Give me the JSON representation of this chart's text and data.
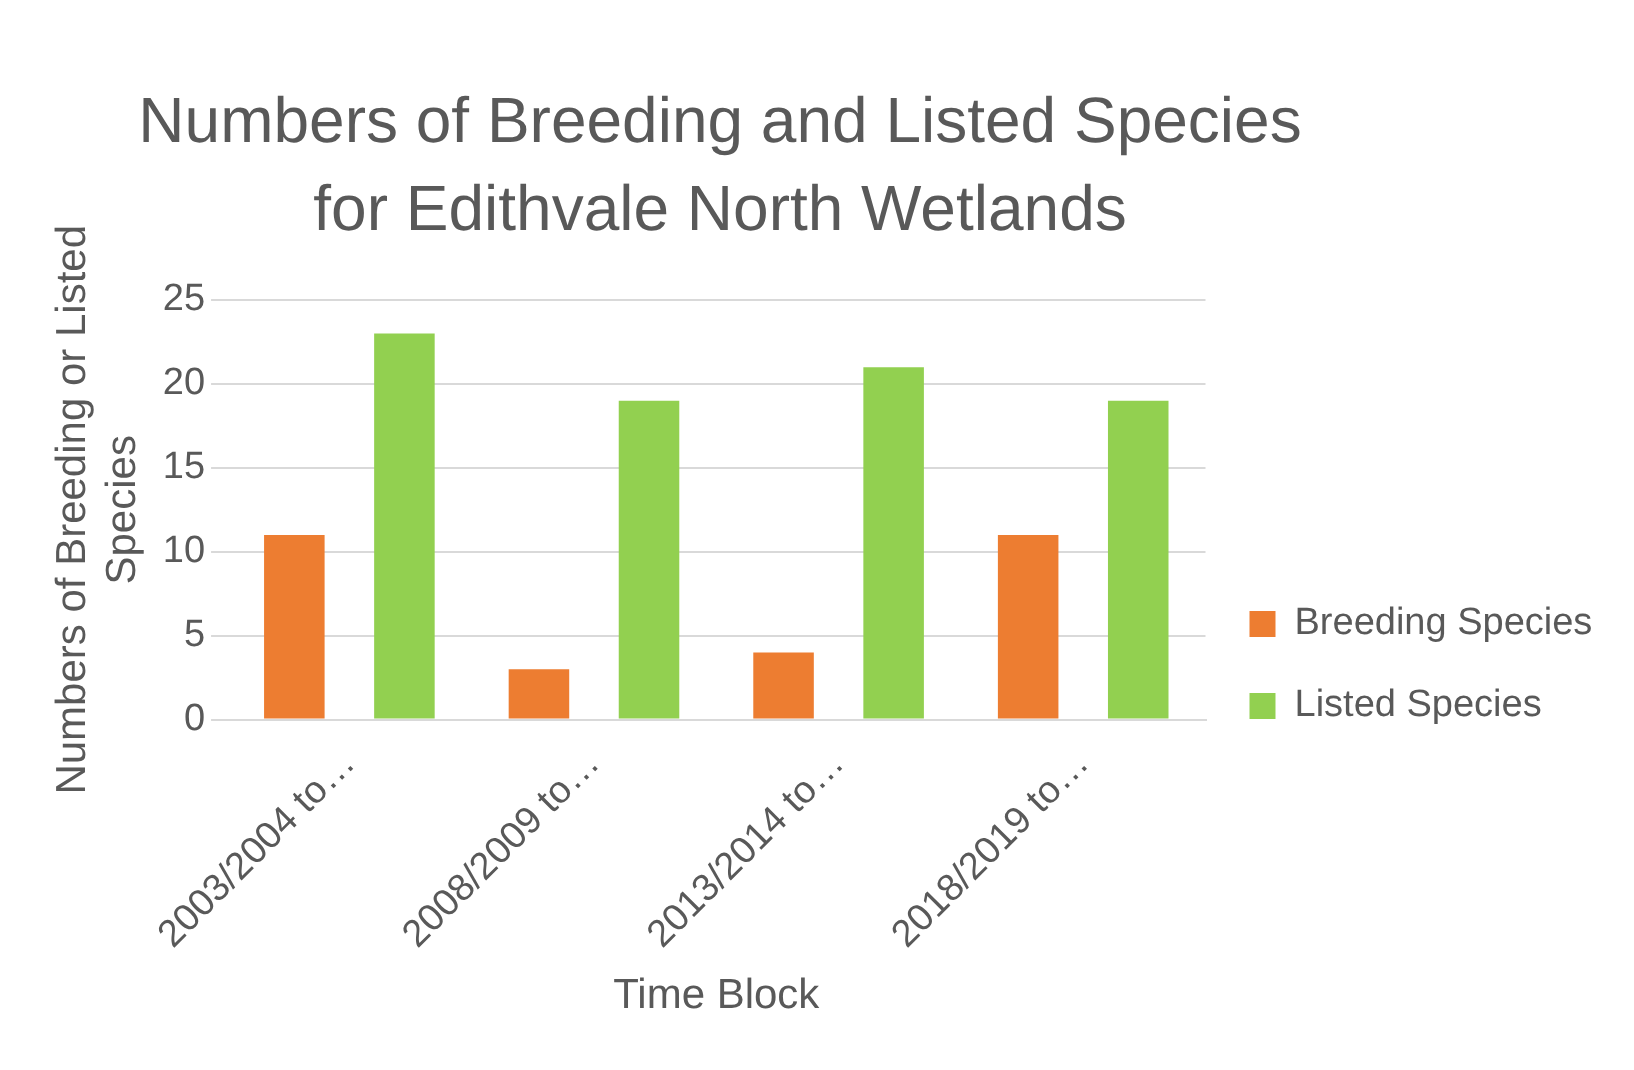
{
  "chart_data": {
    "type": "bar",
    "title": "Numbers of Breeding and Listed Species for Edithvale North Wetlands",
    "xlabel": "Time Block",
    "ylabel": "Numbers of Breeding or Listed Species",
    "categories": [
      "2003/2004 to…",
      "2008/2009 to…",
      "2013/2014 to…",
      "2018/2019 to…"
    ],
    "series": [
      {
        "name": "Breeding Species",
        "color": "#ed7d31",
        "values": [
          11,
          3,
          4,
          11
        ]
      },
      {
        "name": "Listed Species",
        "color": "#92d050",
        "values": [
          23,
          19,
          21,
          19
        ]
      }
    ],
    "ylim": [
      0,
      25
    ],
    "yticks": [
      0,
      5,
      10,
      15,
      20,
      25
    ],
    "grid": "y",
    "legend": "right"
  }
}
